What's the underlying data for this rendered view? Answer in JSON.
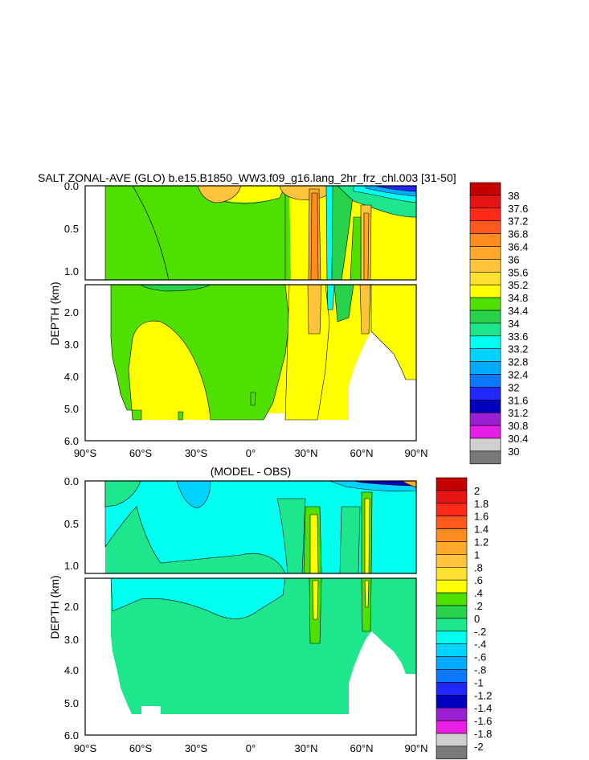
{
  "chart_data": [
    {
      "type": "heatmap",
      "title": "SALT ZONAL-AVE (GLO) b.e15.B1850_WW3.f09_g16.lang_2hr_frz_chl.003 [31-50]",
      "xlabel": "",
      "ylabel": "DEPTH (km)",
      "x_ticks": [
        "90°S",
        "60°S",
        "30°S",
        "0°",
        "30°N",
        "60°N",
        "90°N"
      ],
      "xlim": [
        -90,
        90
      ],
      "y_ticks_upper": [
        "0.0",
        "0.5",
        "1.0"
      ],
      "y_ticks_lower": [
        "2.0",
        "3.0",
        "4.0",
        "5.0",
        "6.0"
      ],
      "ylim_upper_km": [
        0,
        1.1
      ],
      "ylim_lower_km": [
        1.1,
        6.0
      ],
      "colorbar_levels": [
        "38",
        "37.6",
        "37.2",
        "36.8",
        "36.4",
        "36",
        "35.6",
        "35.2",
        "34.8",
        "34.4",
        "34",
        "33.6",
        "33.2",
        "32.8",
        "32.4",
        "32",
        "31.6",
        "31.2",
        "30.8",
        "30.4",
        "30"
      ],
      "colorbar_colors": [
        "#c40000",
        "#e61414",
        "#ff2a1a",
        "#ff5a1e",
        "#ff8c1e",
        "#ffa82a",
        "#ffc43c",
        "#ffe030",
        "#ffff00",
        "#50e000",
        "#28d24a",
        "#1ee68c",
        "#00ffee",
        "#00d2ff",
        "#00aaff",
        "#0a78ff",
        "#1e28ff",
        "#0000be",
        "#9b1fd2",
        "#e61ee6",
        "#d0d0d0",
        "#7a7a7a"
      ]
    },
    {
      "type": "heatmap",
      "title": "(MODEL - OBS)",
      "xlabel": "",
      "ylabel": "DEPTH (km)",
      "x_ticks": [
        "90°S",
        "60°S",
        "30°S",
        "0°",
        "30°N",
        "60°N",
        "90°N"
      ],
      "xlim": [
        -90,
        90
      ],
      "y_ticks_upper": [
        "0.0",
        "0.5",
        "1.0"
      ],
      "y_ticks_lower": [
        "2.0",
        "3.0",
        "4.0",
        "5.0",
        "6.0"
      ],
      "ylim_upper_km": [
        0,
        1.1
      ],
      "ylim_lower_km": [
        1.1,
        6.0
      ],
      "colorbar_levels": [
        "2",
        "1.8",
        "1.6",
        "1.4",
        "1.2",
        "1",
        ".8",
        ".6",
        ".4",
        ".2",
        "0",
        "-.2",
        "-.4",
        "-.6",
        "-.8",
        "-1",
        "-1.2",
        "-1.4",
        "-1.6",
        "-1.8",
        "-2"
      ],
      "colorbar_colors": [
        "#c40000",
        "#e61414",
        "#ff2a1a",
        "#ff5a1e",
        "#ff8c1e",
        "#ffa82a",
        "#ffc43c",
        "#ffe030",
        "#ffff00",
        "#50e000",
        "#28d24a",
        "#1ee68c",
        "#00ffee",
        "#00d2ff",
        "#00aaff",
        "#0a78ff",
        "#1e28ff",
        "#0000be",
        "#9b1fd2",
        "#e61ee6",
        "#d0d0d0",
        "#7a7a7a"
      ]
    }
  ]
}
